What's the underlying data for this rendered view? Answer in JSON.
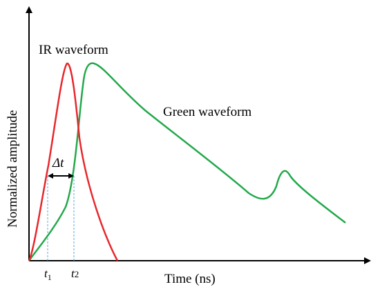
{
  "labels": {
    "ir": "IR waveform",
    "green": "Green waveform",
    "ylabel": "Normalized amplitude",
    "xlabel": "Time (ns)",
    "delta": "Δt",
    "t1": "t",
    "t1_sub": "1",
    "t2": "t",
    "t2_sub": "2"
  },
  "colors": {
    "ir": "#e8272b",
    "green": "#22a94a",
    "marker": "#5aa8e0",
    "axis": "#000000"
  }
}
